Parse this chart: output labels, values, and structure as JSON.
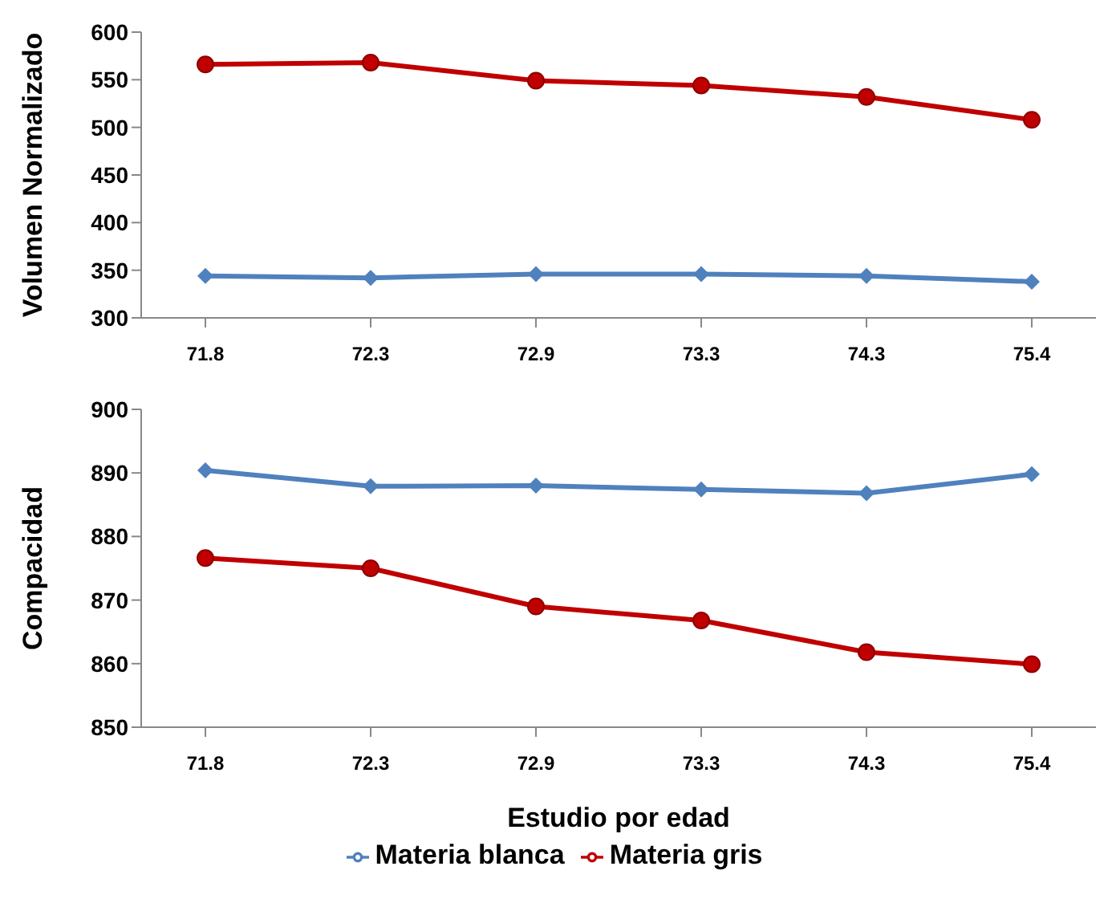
{
  "chart_data": [
    {
      "type": "line",
      "ylabel": "Volumen Normalizado",
      "categories": [
        "71.8",
        "72.3",
        "72.9",
        "73.3",
        "74.3",
        "75.4"
      ],
      "ylim": [
        300,
        600
      ],
      "yticks": [
        300,
        350,
        400,
        450,
        500,
        550,
        600
      ],
      "grid": false,
      "legend": false,
      "series": [
        {
          "color": "#c00000",
          "marker": "circle",
          "values": [
            566,
            568,
            549,
            544,
            532,
            508
          ]
        },
        {
          "color": "#4f81bd",
          "marker": "diamond",
          "values": [
            344,
            342,
            346,
            346,
            344,
            338
          ]
        }
      ]
    },
    {
      "type": "line",
      "ylabel": "Compacidad",
      "xlabel": "Estudio por edad",
      "categories": [
        "71.8",
        "72.3",
        "72.9",
        "73.3",
        "74.3",
        "75.4"
      ],
      "ylim": [
        850,
        900
      ],
      "yticks": [
        850,
        860,
        870,
        880,
        890,
        900
      ],
      "grid": false,
      "legend": "bottom",
      "series": [
        {
          "name": "Materia gris",
          "color": "#c00000",
          "marker": "circle",
          "values": [
            876.6,
            875,
            869,
            866.8,
            861.8,
            859.9
          ]
        },
        {
          "name": "Materia blanca",
          "color": "#4f81bd",
          "marker": "diamond",
          "values": [
            890.4,
            887.9,
            888,
            887.4,
            886.8,
            889.8
          ]
        }
      ]
    }
  ]
}
